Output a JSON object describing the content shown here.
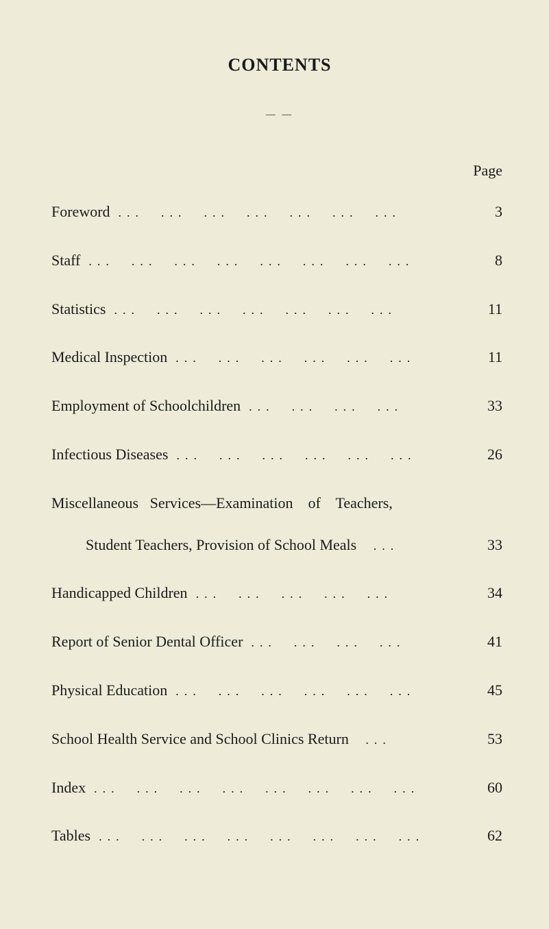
{
  "document": {
    "title": "CONTENTS",
    "page_header": "Page",
    "background_color": "#eeecd9",
    "text_color": "#1a1a1a",
    "font_family": "Georgia, serif",
    "title_fontsize": 26,
    "body_fontsize": 22,
    "divider": "— —"
  },
  "entries": {
    "e0": {
      "label": "Foreword",
      "page": "3"
    },
    "e1": {
      "label": "Staff",
      "page": "8"
    },
    "e2": {
      "label": "Statistics",
      "page": "11"
    },
    "e3": {
      "label": "Medical Inspection",
      "page": "11"
    },
    "e4": {
      "label": "Employment of Schoolchildren",
      "page": "33"
    },
    "e5": {
      "label": "Infectious Diseases",
      "page": "26"
    },
    "e6": {
      "label": "Miscellaneous   Services—Examination    of    Teachers,",
      "page": ""
    },
    "e6b": {
      "label": "Student Teachers, Provision of School Meals",
      "page": "33"
    },
    "e7": {
      "label": "Handicapped Children",
      "page": "34"
    },
    "e8": {
      "label": "Report of Senior Dental Officer",
      "page": "41"
    },
    "e9": {
      "label": "Physical Education",
      "page": "45"
    },
    "e10": {
      "label": "School Health Service and School Clinics Return",
      "page": "53"
    },
    "e11": {
      "label": "Index",
      "page": "60"
    },
    "e12": {
      "label": "Tables",
      "page": "62"
    }
  },
  "leader_dots": "..."
}
